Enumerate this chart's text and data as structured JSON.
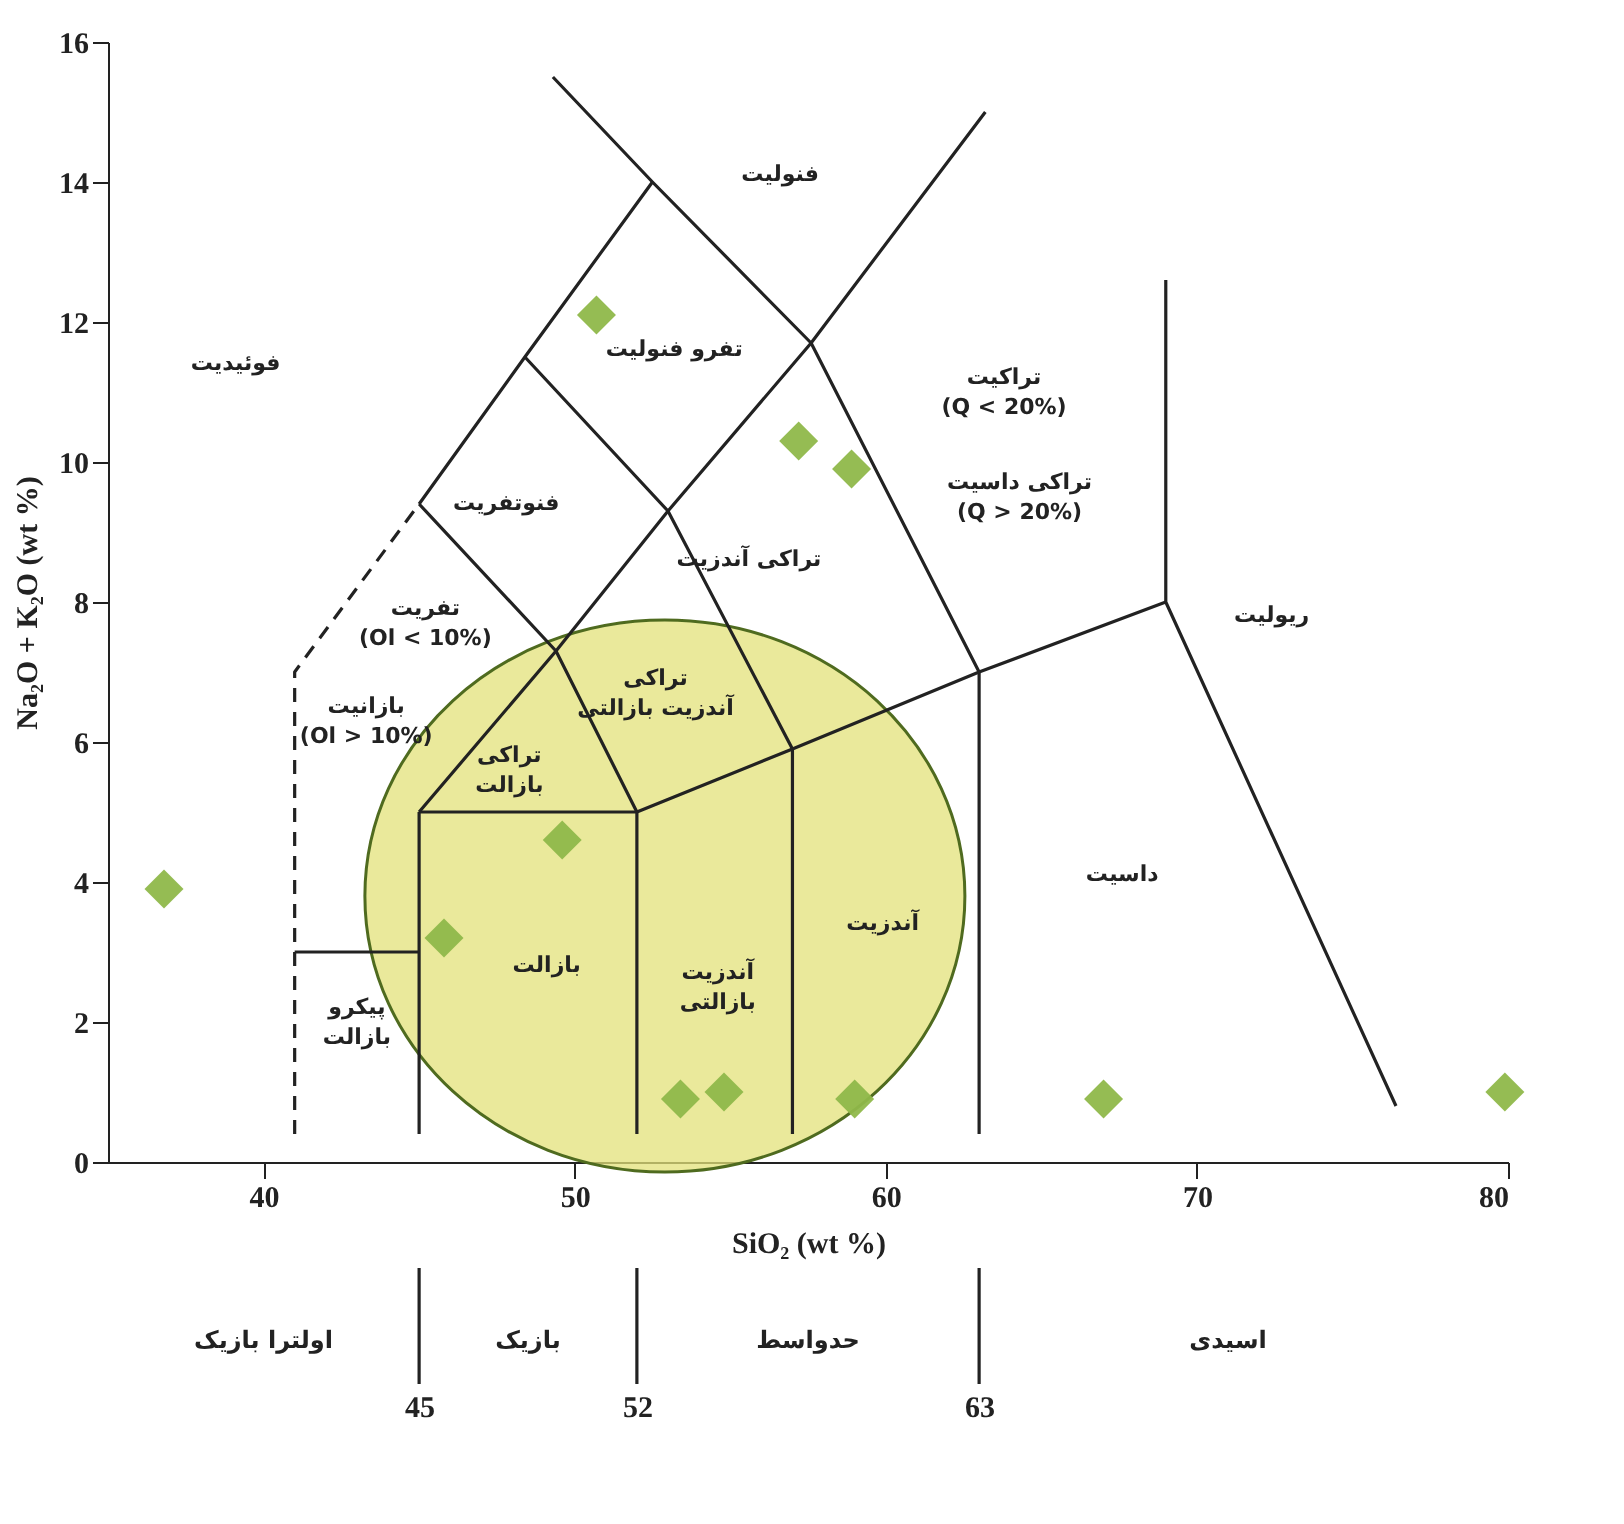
{
  "chart_data": {
    "type": "scatter",
    "xlabel": "SiO₂ (wt %)",
    "ylabel": "Na₂O + K₂O (wt %)",
    "xlim": [
      35,
      80
    ],
    "xticks": [
      40,
      50,
      60,
      70,
      80
    ],
    "ylim": [
      0,
      16
    ],
    "yticks": [
      0,
      2,
      4,
      6,
      8,
      10,
      12,
      14,
      16
    ],
    "x2lim": [
      35,
      80
    ],
    "x2ticks": [
      45,
      52,
      63
    ],
    "annotations": [
      "فوئیدیت",
      "تفرو فنولیت",
      "فنولیت",
      "فنوتفریت",
      "تفریت\n(Ol < 10%)",
      "بازانیت\n(Ol > 10%)",
      "تراکی\nآندزیت بازالتی",
      "تراکی آندزیت",
      "تراکیت\n(Q < 20%)",
      "تراکی داسیت\n(Q > 20%)",
      "ریولیت",
      "تراکی\nبازالت",
      "بازالت",
      "آندزیت\nبازالتی",
      "آندزیت",
      "داسیت",
      "پیکرو\nبازالت",
      "اولترا بازیک",
      "بازیک",
      "حدواسط",
      "اسیدی"
    ],
    "series": [
      {
        "color": "#8fb84a",
        "marker": "diamond",
        "x": [
          36.8,
          45.8,
          49.6,
          50.7,
          57.2,
          58.9,
          53.4,
          54.8,
          59.0,
          67.0,
          79.9
        ],
        "values": [
          3.9,
          3.2,
          4.6,
          12.1,
          10.3,
          9.9,
          0.9,
          1.0,
          0.9,
          0.9,
          1.0
        ]
      },
      {
        "type": "line",
        "color": "#222222",
        "line_style": "dashed",
        "x": [
          41,
          41,
          45
        ],
        "values": [
          0.4,
          7,
          9.4
        ]
      },
      {
        "type": "line",
        "color": "#222222",
        "x": [
          41,
          45
        ],
        "values": [
          3,
          3
        ]
      },
      {
        "type": "line",
        "color": "#222222",
        "x": [
          45,
          48.4,
          52.5
        ],
        "values": [
          9.4,
          11.5,
          14
        ]
      },
      {
        "type": "line",
        "color": "#222222",
        "x": [
          49.3,
          52.5,
          57.6,
          63
        ],
        "values": [
          15.5,
          14,
          11.7,
          7
        ]
      },
      {
        "type": "line",
        "color": "#222222",
        "x": [
          45,
          49.4,
          53,
          57.6,
          63.2
        ],
        "values": [
          5,
          7.3,
          9.3,
          11.7,
          15
        ]
      },
      {
        "type": "line",
        "color": "#222222",
        "x": [
          45,
          49.4,
          52
        ],
        "values": [
          9.4,
          7.3,
          5
        ]
      },
      {
        "type": "line",
        "color": "#222222",
        "x": [
          48.4,
          53,
          57
        ],
        "values": [
          11.5,
          9.3,
          5.9
        ]
      },
      {
        "type": "line",
        "color": "#222222",
        "x": [
          45,
          45
        ],
        "values": [
          0.4,
          5
        ]
      },
      {
        "type": "line",
        "color": "#222222",
        "x": [
          52,
          52
        ],
        "values": [
          0.4,
          5
        ]
      },
      {
        "type": "line",
        "color": "#222222",
        "x": [
          57,
          57
        ],
        "values": [
          0.4,
          5.9
        ]
      },
      {
        "type": "line",
        "color": "#222222",
        "x": [
          63,
          63
        ],
        "values": [
          0.4,
          7
        ]
      },
      {
        "type": "line",
        "color": "#222222",
        "x": [
          45,
          52,
          57,
          63,
          69
        ],
        "values": [
          5,
          5,
          5.9,
          7,
          8
        ]
      },
      {
        "type": "line",
        "color": "#222222",
        "x": [
          69,
          69,
          76.4
        ],
        "values": [
          12.6,
          8,
          0.8
        ]
      }
    ]
  }
}
